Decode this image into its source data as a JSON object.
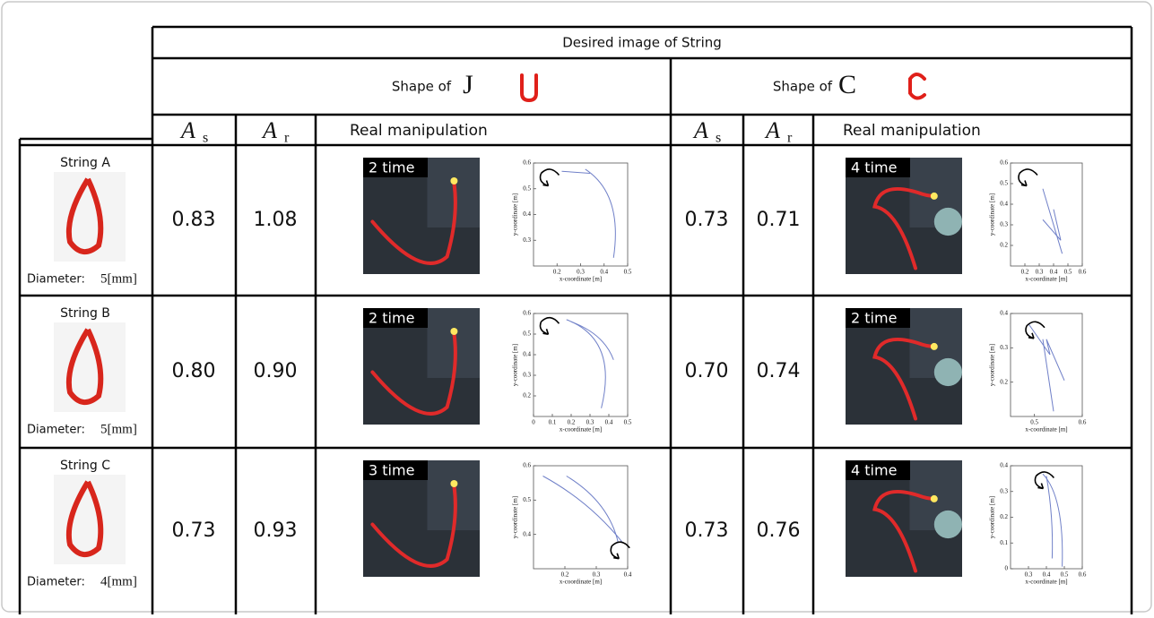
{
  "table": {
    "title": "Desired image of String",
    "col_headers": {
      "a_s": {
        "symbol": "A",
        "sub": "s"
      },
      "a_r": {
        "symbol": "A",
        "sub": "r"
      },
      "real": "Real manipulation"
    },
    "shapes": [
      {
        "label": "Shape of",
        "letter": "J"
      },
      {
        "label": "Shape of",
        "letter": "C"
      }
    ],
    "rows": [
      {
        "string": "String A",
        "diameter_label": "Diameter:",
        "diameter": "5[mm]",
        "cells": [
          {
            "a_s": "0.83",
            "a_r": "1.08",
            "time": "2 time",
            "plot": {
              "xlabel": "x-coordinate [m]",
              "ylabel": "y-coordinate [m]",
              "xlim": [
                0.1,
                0.5
              ],
              "ylim": [
                0.2,
                0.6
              ],
              "xticks": [
                0.2,
                0.3,
                0.4,
                0.5
              ],
              "yticks": [
                0.3,
                0.4,
                0.5,
                0.6
              ]
            }
          },
          {
            "a_s": "0.73",
            "a_r": "0.71",
            "time": "4 time",
            "plot": {
              "xlabel": "x-coordinate [m]",
              "ylabel": "y-coordinate [m]",
              "xlim": [
                0.1,
                0.6
              ],
              "ylim": [
                0.1,
                0.6
              ],
              "xticks": [
                0.2,
                0.3,
                0.4,
                0.5,
                0.6
              ],
              "yticks": [
                0.2,
                0.3,
                0.4,
                0.5,
                0.6
              ]
            }
          }
        ]
      },
      {
        "string": "String B",
        "diameter_label": "Diameter:",
        "diameter": "5[mm]",
        "cells": [
          {
            "a_s": "0.80",
            "a_r": "0.90",
            "time": "2 time",
            "plot": {
              "xlabel": "x-coordinate [m]",
              "ylabel": "y-coordinate [m]",
              "xlim": [
                0,
                0.5
              ],
              "ylim": [
                0.1,
                0.6
              ],
              "xticks": [
                0,
                0.1,
                0.2,
                0.3,
                0.4,
                0.5
              ],
              "yticks": [
                0.2,
                0.3,
                0.4,
                0.5,
                0.6
              ]
            }
          },
          {
            "a_s": "0.70",
            "a_r": "0.74",
            "time": "2 time",
            "plot": {
              "xlabel": "x-coordinate [m]",
              "ylabel": "y-coordinate [m]",
              "xlim": [
                0.45,
                0.6
              ],
              "ylim": [
                0.1,
                0.4
              ],
              "xticks": [
                0.5,
                0.6
              ],
              "yticks": [
                0.2,
                0.3,
                0.4
              ]
            }
          }
        ]
      },
      {
        "string": "String C",
        "diameter_label": "Diameter:",
        "diameter": "4[mm]",
        "cells": [
          {
            "a_s": "0.73",
            "a_r": "0.93",
            "time": "3 time",
            "plot": {
              "xlabel": "x-coordinate [m]",
              "ylabel": "y-coordinate [m]",
              "xlim": [
                0.1,
                0.4
              ],
              "ylim": [
                0.3,
                0.6
              ],
              "xticks": [
                0.2,
                0.3,
                0.4
              ],
              "yticks": [
                0.4,
                0.5,
                0.6
              ]
            }
          },
          {
            "a_s": "0.73",
            "a_r": "0.76",
            "time": "4 time",
            "plot": {
              "xlabel": "x-coordinate [m]",
              "ylabel": "y-coordinate [m]",
              "xlim": [
                0.2,
                0.6
              ],
              "ylim": [
                0,
                0.4
              ],
              "xticks": [
                0.3,
                0.4,
                0.5,
                0.6
              ],
              "yticks": [
                0,
                0.1,
                0.2,
                0.3,
                0.4
              ]
            }
          }
        ]
      }
    ]
  }
}
